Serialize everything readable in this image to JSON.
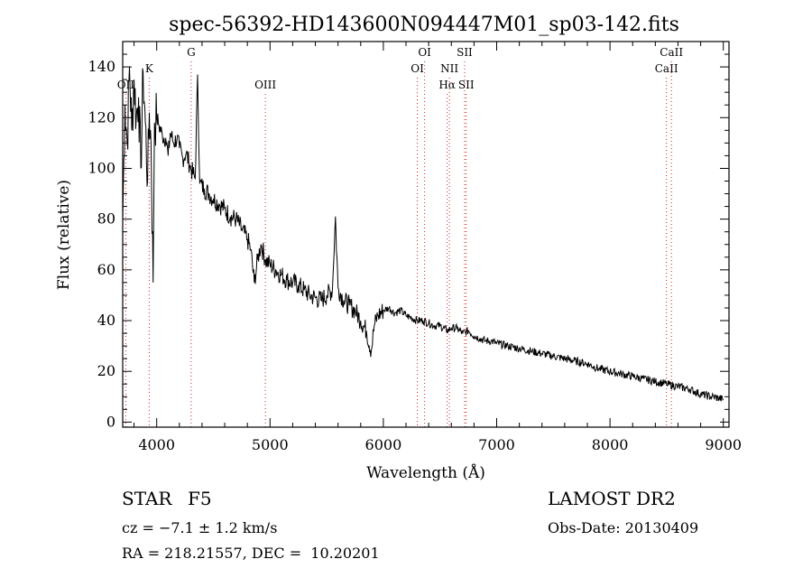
{
  "chart_data": {
    "type": "line",
    "title": "spec-56392-HD143600N094447M01_sp03-142.fits",
    "xlabel": "Wavelength (Å)",
    "ylabel": "Flux (relative)",
    "xlim": [
      3700,
      9050
    ],
    "ylim": [
      -2,
      150
    ],
    "x_ticks": [
      4000,
      5000,
      6000,
      7000,
      8000,
      9000
    ],
    "y_ticks": [
      0,
      20,
      40,
      60,
      80,
      100,
      120,
      140
    ],
    "grid": false,
    "series": [
      {
        "x": [
          3700,
          3720,
          3740,
          3760,
          3780,
          3800,
          3820,
          3840,
          3860,
          3880,
          3900,
          3920,
          3935,
          3950,
          3968,
          3980,
          4000,
          4020,
          4050,
          4080,
          4101,
          4120,
          4150,
          4180,
          4200,
          4230,
          4260,
          4300,
          4340,
          4361,
          4380,
          4420,
          4460,
          4500,
          4550,
          4600,
          4650,
          4700,
          4750,
          4800,
          4830,
          4861,
          4890,
          4920,
          4960,
          5000,
          5050,
          5100,
          5150,
          5200,
          5250,
          5300,
          5350,
          5400,
          5450,
          5500,
          5550,
          5577,
          5600,
          5650,
          5700,
          5750,
          5800,
          5850,
          5893,
          5920,
          5950,
          6000,
          6050,
          6100,
          6150,
          6200,
          6250,
          6300,
          6350,
          6400,
          6450,
          6500,
          6563,
          6600,
          6650,
          6700,
          6750,
          6800,
          6850,
          6900,
          6950,
          7000,
          7100,
          7200,
          7300,
          7400,
          7500,
          7600,
          7700,
          7800,
          7900,
          8000,
          8100,
          8200,
          8300,
          8400,
          8500,
          8600,
          8700,
          8800,
          8900,
          9000
        ],
        "y": [
          80,
          125,
          110,
          140,
          115,
          135,
          120,
          128,
          100,
          138,
          118,
          95,
          122,
          110,
          55,
          118,
          120,
          117,
          113,
          112,
          105,
          114,
          110,
          112,
          108,
          104,
          106,
          100,
          96,
          137,
          94,
          92,
          90,
          88,
          86,
          84,
          81,
          80,
          76,
          72,
          68,
          55,
          64,
          70,
          64,
          62,
          60,
          58,
          56,
          55,
          54,
          52,
          50,
          49,
          48,
          50,
          52,
          81,
          53,
          48,
          46,
          44,
          40,
          36,
          28,
          38,
          42,
          44,
          45,
          43,
          44,
          42,
          41,
          40,
          40,
          39,
          38,
          38,
          36,
          37,
          37,
          35,
          36,
          34,
          33,
          32,
          32,
          31,
          30,
          29,
          28,
          27,
          26,
          25,
          24,
          23,
          21,
          20,
          19,
          18,
          17,
          16,
          15,
          14,
          13,
          11,
          10,
          9
        ]
      }
    ],
    "lines": [
      {
        "label": "OII",
        "x": 3727,
        "row": 2
      },
      {
        "label": "K",
        "x": 3934,
        "row": 1
      },
      {
        "label": "G",
        "x": 4304,
        "row": 0
      },
      {
        "label": "OIII",
        "x": 4959,
        "row": 2
      },
      {
        "label": "OI",
        "x": 6300,
        "row": 1
      },
      {
        "label": "OI",
        "x": 6364,
        "row": 0
      },
      {
        "label": "NII",
        "x": 6583,
        "row": 1
      },
      {
        "label": "Hα",
        "x": 6563,
        "row": 2
      },
      {
        "label": "SII",
        "x": 6717,
        "row": 0
      },
      {
        "label": "SII",
        "x": 6731,
        "row": 2
      },
      {
        "label": "CaII",
        "x": 8498,
        "row": 1
      },
      {
        "label": "CaII",
        "x": 8542,
        "row": 0
      }
    ]
  },
  "info": {
    "class_label": "STAR",
    "subclass": "F5",
    "cz": "cz = −7.1 ± 1.2 km/s",
    "radec": "RA = 218.21557, DEC =  10.20201",
    "survey": "LAMOST DR2",
    "obs_date": "Obs-Date: 20130409"
  }
}
